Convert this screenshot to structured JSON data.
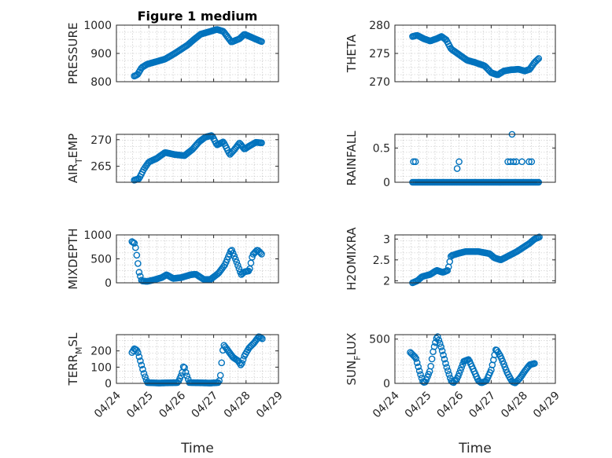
{
  "figure": {
    "title": "Figure 1 medium",
    "accent_color": "#0072bd"
  },
  "chart_data": [
    {
      "type": "scatter",
      "name": "pressure",
      "title": "Figure 1 medium",
      "ylabel": "PRESSURE",
      "ylabel_sub": "",
      "ylabel_rest": "",
      "xlabel": "",
      "ylim": [
        800,
        1000
      ],
      "yticks": [
        800,
        900,
        1000
      ],
      "xlim": [
        0,
        5
      ],
      "grid": true,
      "minor_grid": true,
      "anchors": [
        [
          0.55,
          820
        ],
        [
          0.65,
          825
        ],
        [
          0.78,
          850
        ],
        [
          0.95,
          862
        ],
        [
          1.2,
          870
        ],
        [
          1.5,
          880
        ],
        [
          1.8,
          900
        ],
        [
          2.0,
          915
        ],
        [
          2.2,
          930
        ],
        [
          2.4,
          950
        ],
        [
          2.6,
          968
        ],
        [
          2.9,
          978
        ],
        [
          3.1,
          985
        ],
        [
          3.3,
          978
        ],
        [
          3.45,
          955
        ],
        [
          3.55,
          940
        ],
        [
          3.8,
          952
        ],
        [
          3.95,
          968
        ],
        [
          4.15,
          958
        ],
        [
          4.35,
          948
        ],
        [
          4.48,
          942
        ]
      ],
      "n": 110
    },
    {
      "type": "scatter",
      "name": "theta",
      "title": "",
      "ylabel": "THETA",
      "ylabel_sub": "",
      "ylabel_rest": "",
      "xlabel": "",
      "ylim": [
        270,
        280
      ],
      "yticks": [
        270,
        275,
        280
      ],
      "xlim": [
        0,
        5
      ],
      "grid": true,
      "minor_grid": true,
      "anchors": [
        [
          0.55,
          278
        ],
        [
          0.7,
          278.2
        ],
        [
          0.9,
          277.6
        ],
        [
          1.1,
          277.2
        ],
        [
          1.3,
          277.6
        ],
        [
          1.45,
          278
        ],
        [
          1.6,
          277.4
        ],
        [
          1.75,
          275.8
        ],
        [
          2.0,
          274.8
        ],
        [
          2.25,
          273.8
        ],
        [
          2.5,
          273.4
        ],
        [
          2.8,
          272.8
        ],
        [
          3.0,
          271.6
        ],
        [
          3.2,
          271.2
        ],
        [
          3.4,
          271.9
        ],
        [
          3.6,
          272.1
        ],
        [
          3.85,
          272.2
        ],
        [
          4.05,
          271.9
        ],
        [
          4.2,
          272.2
        ],
        [
          4.35,
          273.4
        ],
        [
          4.48,
          274.1
        ]
      ],
      "n": 110
    },
    {
      "type": "scatter",
      "name": "air-temp",
      "title": "",
      "ylabel": "AIR",
      "ylabel_sub": "T",
      "ylabel_rest": "EMP",
      "xlabel": "",
      "ylim": [
        262,
        271
      ],
      "yticks": [
        265,
        270
      ],
      "xlim": [
        0,
        5
      ],
      "grid": true,
      "minor_grid": true,
      "anchors": [
        [
          0.55,
          262.4
        ],
        [
          0.7,
          262.7
        ],
        [
          0.85,
          264.5
        ],
        [
          1.0,
          265.8
        ],
        [
          1.25,
          266.5
        ],
        [
          1.5,
          267.6
        ],
        [
          1.8,
          267.2
        ],
        [
          2.1,
          267.0
        ],
        [
          2.35,
          268.2
        ],
        [
          2.55,
          269.6
        ],
        [
          2.75,
          270.5
        ],
        [
          2.95,
          270.8
        ],
        [
          3.1,
          269.0
        ],
        [
          3.3,
          269.6
        ],
        [
          3.5,
          267.2
        ],
        [
          3.65,
          268.2
        ],
        [
          3.8,
          269.4
        ],
        [
          3.95,
          268.2
        ],
        [
          4.1,
          268.8
        ],
        [
          4.3,
          269.5
        ],
        [
          4.48,
          269.4
        ]
      ],
      "n": 110
    },
    {
      "type": "scatter",
      "name": "rainfall",
      "title": "",
      "ylabel": "RAINFALL",
      "ylabel_sub": "",
      "ylabel_rest": "",
      "xlabel": "",
      "ylim": [
        0,
        0.7
      ],
      "yticks": [
        0,
        0.5
      ],
      "xlim": [
        0,
        5
      ],
      "grid": true,
      "minor_grid": true,
      "anchors": [
        [
          0.55,
          0
        ],
        [
          4.48,
          0
        ]
      ],
      "n": 110,
      "extra_points": [
        [
          0.58,
          0.3
        ],
        [
          0.64,
          0.3
        ],
        [
          1.94,
          0.2
        ],
        [
          2.0,
          0.3
        ],
        [
          3.52,
          0.3
        ],
        [
          3.6,
          0.3
        ],
        [
          3.65,
          0.7
        ],
        [
          3.7,
          0.3
        ],
        [
          3.78,
          0.3
        ],
        [
          3.96,
          0.3
        ],
        [
          4.18,
          0.3
        ],
        [
          4.26,
          0.3
        ]
      ]
    },
    {
      "type": "scatter",
      "name": "mixdepth",
      "title": "",
      "ylabel": "MIXDEPTH",
      "ylabel_sub": "",
      "ylabel_rest": "",
      "xlabel": "",
      "ylim": [
        0,
        1000
      ],
      "yticks": [
        0,
        500,
        1000
      ],
      "xlim": [
        0,
        5
      ],
      "grid": true,
      "minor_grid": true,
      "anchors": [
        [
          0.48,
          860
        ],
        [
          0.57,
          820
        ],
        [
          0.64,
          520
        ],
        [
          0.7,
          220
        ],
        [
          0.78,
          40
        ],
        [
          0.95,
          30
        ],
        [
          1.15,
          60
        ],
        [
          1.4,
          110
        ],
        [
          1.55,
          170
        ],
        [
          1.75,
          90
        ],
        [
          2.0,
          110
        ],
        [
          2.3,
          170
        ],
        [
          2.45,
          180
        ],
        [
          2.7,
          70
        ],
        [
          2.9,
          70
        ],
        [
          3.15,
          200
        ],
        [
          3.35,
          380
        ],
        [
          3.55,
          700
        ],
        [
          3.7,
          450
        ],
        [
          3.85,
          170
        ],
        [
          3.95,
          230
        ],
        [
          4.1,
          250
        ],
        [
          4.2,
          580
        ],
        [
          4.35,
          690
        ],
        [
          4.48,
          600
        ]
      ],
      "n": 110
    },
    {
      "type": "scatter",
      "name": "h2omixra",
      "title": "",
      "ylabel": "H2OMIXRA",
      "ylabel_sub": "",
      "ylabel_rest": "",
      "xlabel": "",
      "ylim": [
        1.95,
        3.1
      ],
      "yticks": [
        2,
        2.5,
        3
      ],
      "xlim": [
        0,
        5
      ],
      "grid": true,
      "minor_grid": true,
      "anchors": [
        [
          0.55,
          1.95
        ],
        [
          0.7,
          2.0
        ],
        [
          0.85,
          2.1
        ],
        [
          1.1,
          2.15
        ],
        [
          1.3,
          2.25
        ],
        [
          1.5,
          2.2
        ],
        [
          1.65,
          2.25
        ],
        [
          1.75,
          2.6
        ],
        [
          1.95,
          2.65
        ],
        [
          2.2,
          2.7
        ],
        [
          2.6,
          2.7
        ],
        [
          2.95,
          2.65
        ],
        [
          3.1,
          2.55
        ],
        [
          3.3,
          2.5
        ],
        [
          3.55,
          2.6
        ],
        [
          3.8,
          2.7
        ],
        [
          4.0,
          2.8
        ],
        [
          4.2,
          2.9
        ],
        [
          4.35,
          3.0
        ],
        [
          4.5,
          3.05
        ]
      ],
      "n": 110
    },
    {
      "type": "scatter",
      "name": "terr-msl",
      "title": "",
      "ylabel": "TERR",
      "ylabel_sub": "M",
      "ylabel_rest": "SL",
      "xlabel": "Time",
      "ylim": [
        0,
        300
      ],
      "yticks": [
        0,
        100,
        200
      ],
      "xlim": [
        0,
        5
      ],
      "xtick_labels": [
        "04/24",
        "04/25",
        "04/26",
        "04/27",
        "04/28",
        "04/29"
      ],
      "grid": true,
      "minor_grid": true,
      "anchors": [
        [
          0.48,
          190
        ],
        [
          0.56,
          215
        ],
        [
          0.65,
          200
        ],
        [
          0.75,
          130
        ],
        [
          0.85,
          60
        ],
        [
          0.95,
          5
        ],
        [
          1.3,
          2
        ],
        [
          1.9,
          5
        ],
        [
          2.02,
          60
        ],
        [
          2.08,
          115
        ],
        [
          2.15,
          60
        ],
        [
          2.25,
          5
        ],
        [
          2.9,
          2
        ],
        [
          3.15,
          5
        ],
        [
          3.2,
          30
        ],
        [
          3.3,
          240
        ],
        [
          3.45,
          200
        ],
        [
          3.6,
          160
        ],
        [
          3.75,
          140
        ],
        [
          3.85,
          110
        ],
        [
          3.95,
          170
        ],
        [
          4.1,
          220
        ],
        [
          4.25,
          250
        ],
        [
          4.4,
          290
        ],
        [
          4.5,
          275
        ]
      ],
      "n": 110
    },
    {
      "type": "scatter",
      "name": "sun-flux",
      "title": "",
      "ylabel": "SUN",
      "ylabel_sub": "F",
      "ylabel_rest": "LUX",
      "xlabel": "Time",
      "ylim": [
        0,
        550
      ],
      "yticks": [
        0,
        500
      ],
      "xlim": [
        0,
        5
      ],
      "xtick_labels": [
        "04/24",
        "04/25",
        "04/26",
        "04/27",
        "04/28",
        "04/29"
      ],
      "grid": true,
      "minor_grid": true,
      "anchors": [
        [
          0.48,
          350
        ],
        [
          0.65,
          290
        ],
        [
          0.78,
          120
        ],
        [
          0.88,
          10
        ],
        [
          0.95,
          15
        ],
        [
          1.1,
          150
        ],
        [
          1.2,
          380
        ],
        [
          1.32,
          540
        ],
        [
          1.45,
          400
        ],
        [
          1.6,
          200
        ],
        [
          1.75,
          30
        ],
        [
          1.82,
          5
        ],
        [
          1.95,
          60
        ],
        [
          2.15,
          250
        ],
        [
          2.3,
          270
        ],
        [
          2.45,
          150
        ],
        [
          2.6,
          30
        ],
        [
          2.7,
          5
        ],
        [
          2.85,
          30
        ],
        [
          3.0,
          150
        ],
        [
          3.15,
          390
        ],
        [
          3.3,
          300
        ],
        [
          3.5,
          120
        ],
        [
          3.65,
          20
        ],
        [
          3.75,
          5
        ],
        [
          3.9,
          60
        ],
        [
          4.05,
          140
        ],
        [
          4.2,
          210
        ],
        [
          4.35,
          225
        ]
      ],
      "n": 110
    }
  ]
}
